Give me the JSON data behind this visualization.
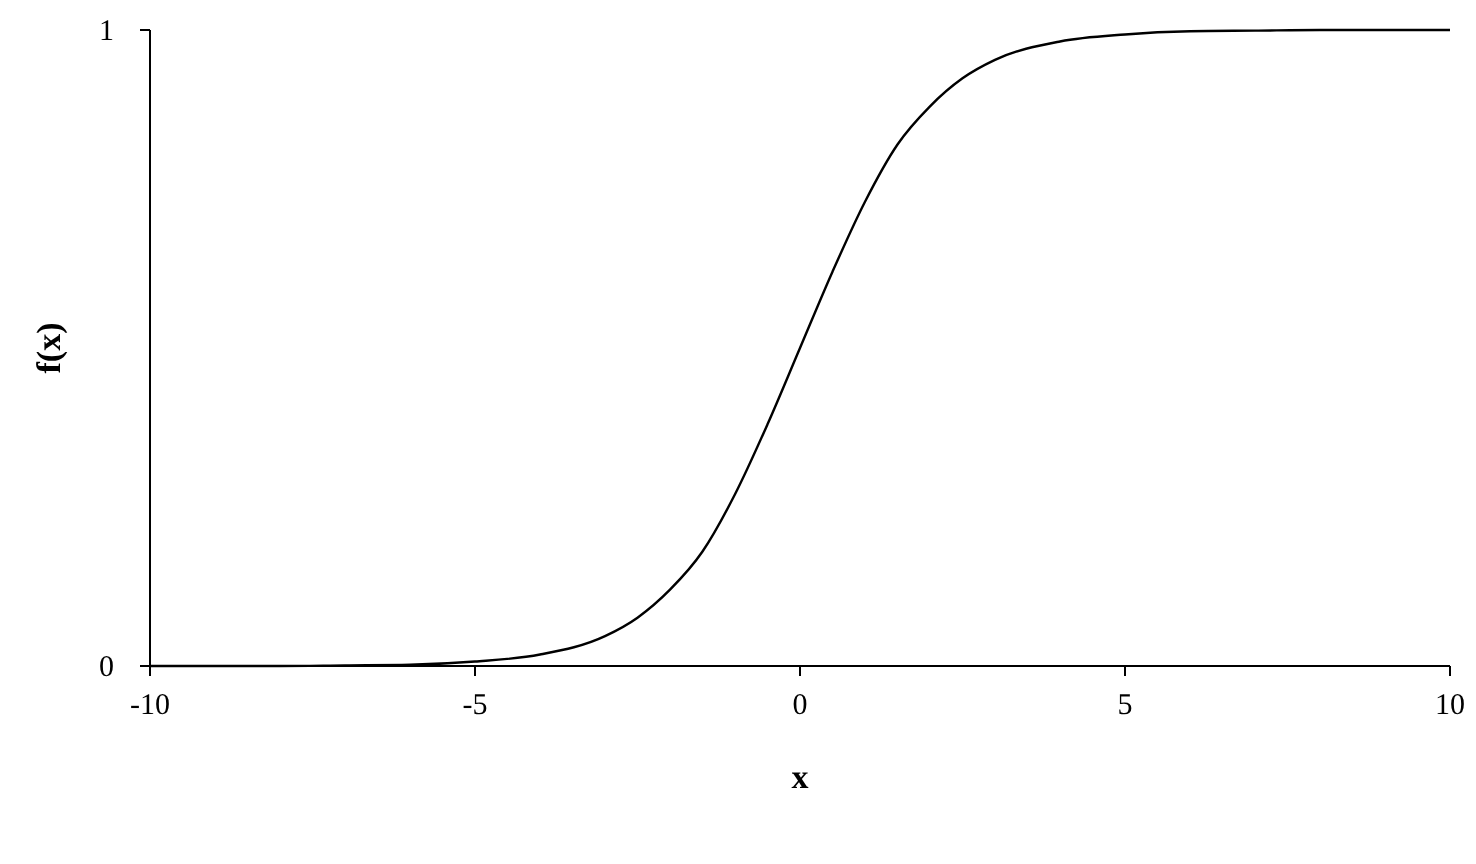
{
  "chart_data": {
    "type": "line",
    "xlabel": "x",
    "ylabel": "f(x)",
    "x": [
      -10,
      -9,
      -8,
      -7,
      -6,
      -5,
      -4,
      -3,
      -2.5,
      -2,
      -1.5,
      -1,
      -0.5,
      0,
      0.5,
      1,
      1.5,
      2,
      2.5,
      3,
      4,
      5,
      6,
      7,
      8,
      9,
      10
    ],
    "series": [
      {
        "color": "#000000",
        "values": [
          0,
          0,
          0,
          0.001,
          0.002,
          0.007,
          0.018,
          0.047,
          0.076,
          0.12,
          0.18,
          0.27,
          0.38,
          0.5,
          0.62,
          0.73,
          0.82,
          0.88,
          0.924,
          0.953,
          0.982,
          0.993,
          0.998,
          0.999,
          1,
          1,
          1
        ]
      }
    ],
    "xlim": [
      -10,
      10
    ],
    "ylim": [
      0,
      1
    ],
    "xticks": [
      -10,
      -5,
      0,
      5,
      10
    ],
    "yticks": [
      0,
      1
    ],
    "grid": false,
    "marker": "none",
    "line_style": "solid"
  }
}
